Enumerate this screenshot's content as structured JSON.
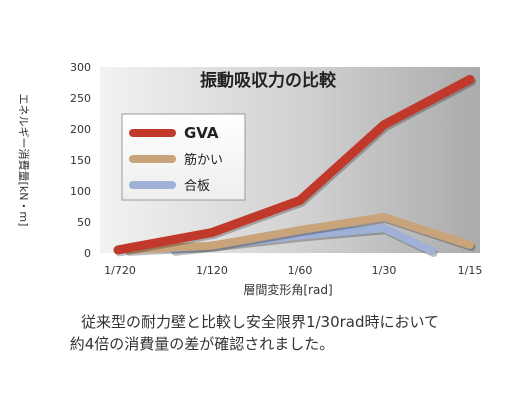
{
  "chart_data": {
    "type": "line",
    "title": "振動吸収力の比較",
    "xlabel": "層間変形角[rad]",
    "ylabel": "エネルギー消費量[kN・m]",
    "categories": [
      "1/720",
      "1/120",
      "1/60",
      "1/30",
      "1/15"
    ],
    "ylim": [
      0,
      300
    ],
    "yticks": [
      0,
      50,
      100,
      150,
      200,
      250,
      300
    ],
    "grid": false,
    "legend_position": "left",
    "series": [
      {
        "name": "GVA",
        "values": [
          5,
          33,
          85,
          207,
          280
        ],
        "color": "#c0392b"
      },
      {
        "name": "筋かい",
        "values": [
          5,
          12,
          37,
          58,
          13
        ],
        "color": "#c9a37a"
      },
      {
        "name": "合板",
        "values": [
          null,
          5,
          28,
          40,
          -1
        ],
        "color": "#9fb1d6"
      }
    ]
  },
  "caption": {
    "line1": "従来型の耐力壁と比較し安全限界1/30rad時において",
    "line2": "約4倍の消費量の差が確認されました。"
  }
}
